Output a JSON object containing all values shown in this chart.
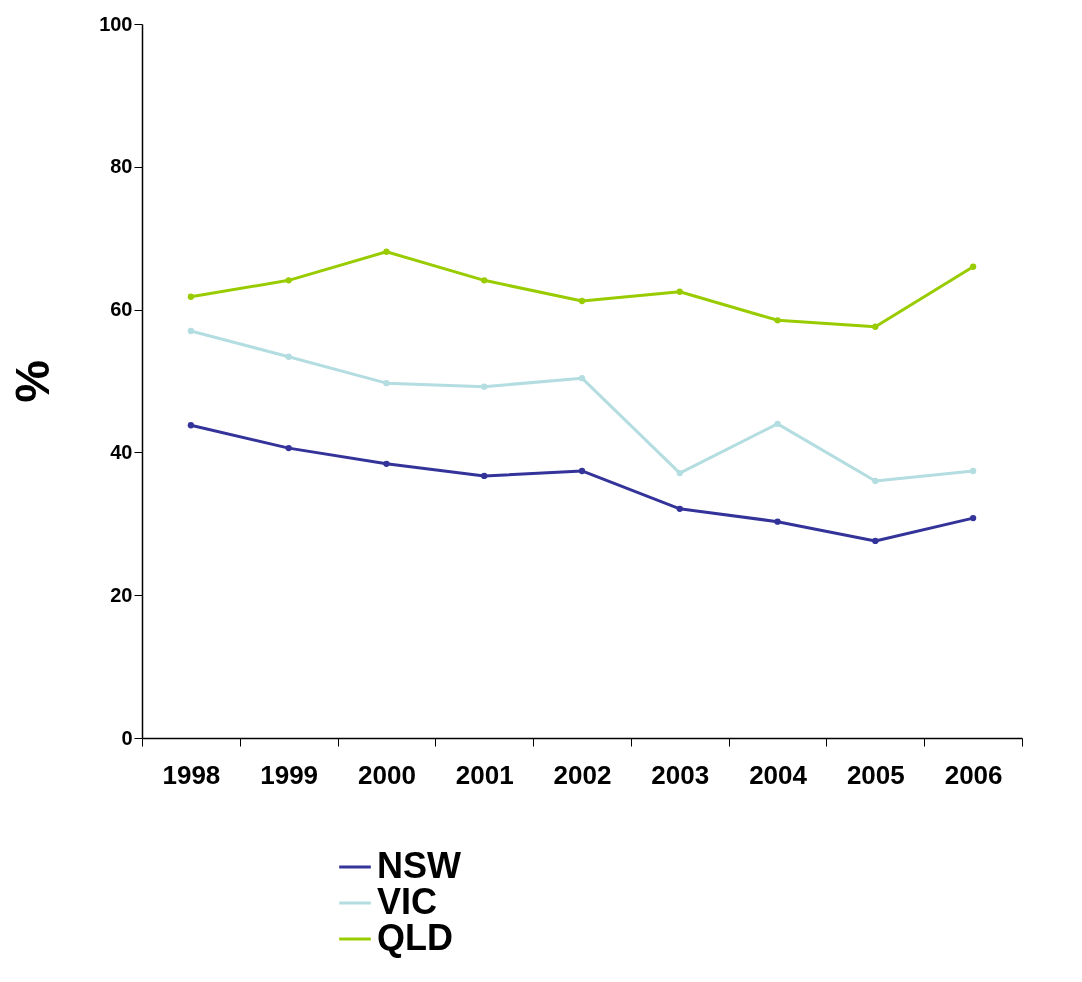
{
  "chart_data": {
    "type": "line",
    "ylabel": "%",
    "categories": [
      "1998",
      "1999",
      "2000",
      "2001",
      "2002",
      "2003",
      "2004",
      "2005",
      "2006"
    ],
    "series": [
      {
        "name": "NSW",
        "color": "#333399",
        "values": [
          43.8,
          40.6,
          38.4,
          36.7,
          37.4,
          32.1,
          30.3,
          27.6,
          30.8
        ]
      },
      {
        "name": "VIC",
        "color": "#b3dde0",
        "values": [
          57.0,
          53.4,
          49.7,
          49.2,
          50.4,
          37.1,
          44.0,
          36.0,
          37.4
        ]
      },
      {
        "name": "QLD",
        "color": "#99cc00",
        "values": [
          61.8,
          64.1,
          68.1,
          64.1,
          61.2,
          62.5,
          58.5,
          57.6,
          66.0
        ]
      }
    ],
    "ylim": [
      0,
      100
    ],
    "yticks": [
      0,
      20,
      40,
      60,
      80,
      100
    ],
    "grid": false,
    "legend": "bottom",
    "marker": "circle",
    "line_style": "solid"
  }
}
